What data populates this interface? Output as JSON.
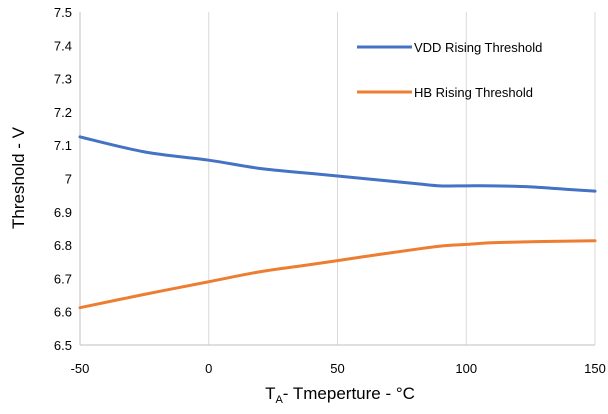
{
  "chart_data": {
    "type": "line",
    "title": "",
    "xlabel_main": "T",
    "xlabel_sub": "A",
    "xlabel_rest": "- Tmeperture - °C",
    "ylabel": "Threshold - V",
    "xlim": [
      -50,
      150
    ],
    "ylim": [
      6.5,
      7.5
    ],
    "x_ticks": [
      -50,
      0,
      50,
      100,
      150
    ],
    "y_ticks": [
      "6.5",
      "6.6",
      "6.7",
      "6.8",
      "6.9",
      "7",
      "7.1",
      "7.2",
      "7.3",
      "7.4",
      "7.5"
    ],
    "grid": "vertical",
    "legend_position": "top-right",
    "series": [
      {
        "name": "VDD Rising Threshold",
        "color": "#4472C4",
        "x": [
          -50,
          -25,
          0,
          20,
          40,
          60,
          80,
          90,
          100,
          110,
          125,
          140,
          150
        ],
        "y": [
          7.125,
          7.08,
          7.055,
          7.03,
          7.015,
          7.0,
          6.985,
          6.978,
          6.978,
          6.978,
          6.975,
          6.967,
          6.962
        ]
      },
      {
        "name": "HB Rising Threshold",
        "color": "#ED7D31",
        "x": [
          -50,
          -25,
          0,
          20,
          40,
          60,
          80,
          90,
          100,
          110,
          125,
          140,
          150
        ],
        "y": [
          6.612,
          6.652,
          6.69,
          6.72,
          6.742,
          6.765,
          6.787,
          6.797,
          6.802,
          6.807,
          6.81,
          6.812,
          6.813
        ]
      }
    ]
  }
}
